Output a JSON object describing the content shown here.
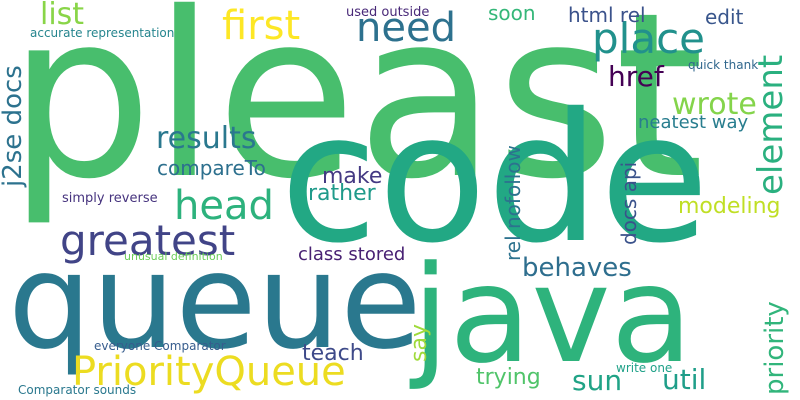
{
  "words": [
    {
      "text": "pleast",
      "color": "#48be6d",
      "orientation": "horizontal"
    },
    {
      "text": "code",
      "color": "#22a884",
      "orientation": "horizontal"
    },
    {
      "text": "queue",
      "color": "#2a788e",
      "orientation": "horizontal"
    },
    {
      "text": "java",
      "color": "#2eb37c",
      "orientation": "horizontal"
    },
    {
      "text": "PriorityQueue",
      "color": "#ecdc21",
      "orientation": "horizontal"
    },
    {
      "text": "greatest",
      "color": "#414487",
      "orientation": "horizontal"
    },
    {
      "text": "head",
      "color": "#2db27d",
      "orientation": "horizontal"
    },
    {
      "text": "first",
      "color": "#fde725",
      "orientation": "horizontal"
    },
    {
      "text": "need",
      "color": "#2d718e",
      "orientation": "horizontal"
    },
    {
      "text": "place",
      "color": "#21918c",
      "orientation": "horizontal"
    },
    {
      "text": "list",
      "color": "#89d548",
      "orientation": "horizontal"
    },
    {
      "text": "results",
      "color": "#2a788e",
      "orientation": "horizontal"
    },
    {
      "text": "element",
      "color": "#2ab07f",
      "orientation": "vertical"
    },
    {
      "text": "j2se docs",
      "color": "#2c728e",
      "orientation": "vertical"
    },
    {
      "text": "html rel",
      "color": "#3b528b",
      "orientation": "horizontal"
    },
    {
      "text": "soon",
      "color": "#35b779",
      "orientation": "horizontal"
    },
    {
      "text": "edit",
      "color": "#39568c",
      "orientation": "horizontal"
    },
    {
      "text": "href",
      "color": "#440154",
      "orientation": "horizontal"
    },
    {
      "text": "wrote",
      "color": "#84d44b",
      "orientation": "horizontal"
    },
    {
      "text": "neatest way",
      "color": "#287d8e",
      "orientation": "horizontal"
    },
    {
      "text": "compareTo",
      "color": "#2d708e",
      "orientation": "horizontal"
    },
    {
      "text": "make",
      "color": "#443983",
      "orientation": "horizontal"
    },
    {
      "text": "rather",
      "color": "#1f9a8a",
      "orientation": "horizontal"
    },
    {
      "text": "docs api",
      "color": "#3a528b",
      "orientation": "vertical"
    },
    {
      "text": "rel nofollow",
      "color": "#2c728e",
      "orientation": "vertical"
    },
    {
      "text": "modeling",
      "color": "#c0df25",
      "orientation": "horizontal"
    },
    {
      "text": "priority",
      "color": "#31b57b",
      "orientation": "vertical"
    },
    {
      "text": "behaves",
      "color": "#2e6e8e",
      "orientation": "horizontal"
    },
    {
      "text": "class stored",
      "color": "#482173",
      "orientation": "horizontal"
    },
    {
      "text": "say",
      "color": "#9fda3a",
      "orientation": "vertical"
    },
    {
      "text": "teach",
      "color": "#3e4a89",
      "orientation": "horizontal"
    },
    {
      "text": "trying",
      "color": "#50c46a",
      "orientation": "horizontal"
    },
    {
      "text": "sun",
      "color": "#20a386",
      "orientation": "horizontal"
    },
    {
      "text": "util",
      "color": "#1f9e89",
      "orientation": "horizontal"
    },
    {
      "text": "used outside",
      "color": "#482878",
      "orientation": "horizontal"
    },
    {
      "text": "accurate representation",
      "color": "#25858e",
      "orientation": "horizontal"
    },
    {
      "text": "quick thank",
      "color": "#30678d",
      "orientation": "horizontal"
    },
    {
      "text": "simply reverse",
      "color": "#46337e",
      "orientation": "horizontal"
    },
    {
      "text": "unusual definition",
      "color": "#6ccd5a",
      "orientation": "horizontal"
    },
    {
      "text": "everyone Comparator",
      "color": "#365c8d",
      "orientation": "horizontal"
    },
    {
      "text": "write one",
      "color": "#1fa188",
      "orientation": "horizontal"
    },
    {
      "text": "Comparator sounds",
      "color": "#2a788e",
      "orientation": "horizontal"
    }
  ]
}
